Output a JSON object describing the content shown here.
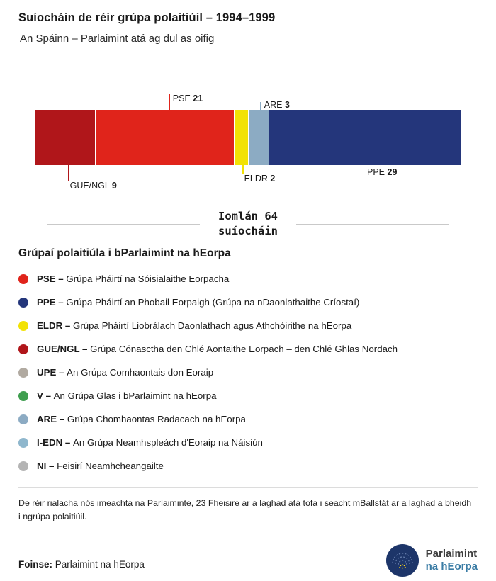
{
  "header": {
    "title": "Suíocháin de réir grúpa polaitiúil – 1994–1999",
    "subtitle": "An Spáinn – Parlaimint atá ag dul as oifig"
  },
  "chart_data": {
    "type": "bar",
    "subtype": "stacked-horizontal",
    "title": "Suíocháin de réir grúpa polaitiúil – 1994–1999",
    "total": 64,
    "series": [
      {
        "name": "GUE/NGL",
        "value": 9,
        "color": "#b0161a"
      },
      {
        "name": "PSE",
        "value": 21,
        "color": "#e0241b"
      },
      {
        "name": "ELDR",
        "value": 2,
        "color": "#f2e205"
      },
      {
        "name": "ARE",
        "value": 3,
        "color": "#8cabc3"
      },
      {
        "name": "PPE",
        "value": 29,
        "color": "#24367b"
      }
    ],
    "callouts": {
      "pse": {
        "name": "PSE",
        "value": "21"
      },
      "are": {
        "name": "ARE",
        "value": "3"
      },
      "gue": {
        "name": "GUE/NGL",
        "value": "9"
      },
      "eldr": {
        "name": "ELDR",
        "value": "2"
      },
      "ppe": {
        "name": "PPE",
        "value": "29"
      }
    }
  },
  "total": {
    "line1": "Iomlán 64",
    "line2": "suíocháin"
  },
  "legend": {
    "heading": "Grúpaí polaitiúla i bParlaimint na hEorpa",
    "items": [
      {
        "abbr": "PSE",
        "desc": "Grúpa Pháirtí na Sóisialaithe Eorpacha",
        "color": "#e0241b"
      },
      {
        "abbr": "PPE",
        "desc": "Grúpa Pháirtí an Phobail Eorpaigh (Grúpa na nDaonlathaithe Críostaí)",
        "color": "#24367b"
      },
      {
        "abbr": "ELDR",
        "desc": "Grúpa Pháirtí Liobrálach Daonlathach agus Athchóirithe na hEorpa",
        "color": "#f2e205"
      },
      {
        "abbr": "GUE/NGL",
        "desc": "Grúpa Cónasctha den Chlé Aontaithe Eorpach – den Chlé Ghlas Nordach",
        "color": "#b0161a"
      },
      {
        "abbr": "UPE",
        "desc": "An Grúpa Comhaontais don Eoraip",
        "color": "#b1aaa1"
      },
      {
        "abbr": "V",
        "desc": "An Grúpa Glas i bParlaimint na hEorpa",
        "color": "#3f9e4f"
      },
      {
        "abbr": "ARE",
        "desc": "Grúpa Chomhaontas Radacach na hEorpa",
        "color": "#8cabc3"
      },
      {
        "abbr": "I-EDN",
        "desc": "An Grúpa Neamhspleách d'Eoraip na Náisiún",
        "color": "#8fb7cd"
      },
      {
        "abbr": "NI",
        "desc": "Feisirí Neamhcheangailte",
        "color": "#b4b4b4"
      }
    ]
  },
  "footnote": "De réir rialacha nós imeachta na Parlaiminte, 23 Fheisire ar a laghad atá tofa i seacht mBallstát ar a laghad a bheidh i ngrúpa polaitiúil.",
  "footer": {
    "source_label": "Foinse:",
    "source_text": "Parlaimint na hEorpa",
    "logo_line1": "Parlaimint",
    "logo_line2": "na hEorpa"
  }
}
